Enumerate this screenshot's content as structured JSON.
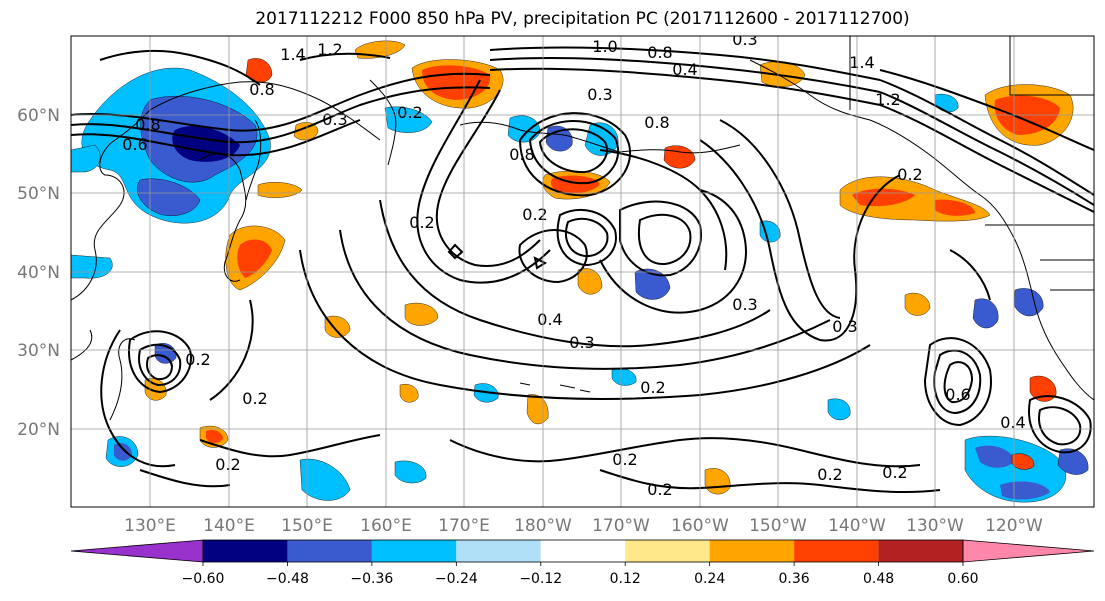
{
  "title": "2017112212 F000 850 hPa PV, precipitation PC (2017112600 - 2017112700)",
  "lat_labels": [
    "60°N",
    "50°N",
    "40°N",
    "30°N",
    "20°N"
  ],
  "lon_labels": [
    "130°E",
    "140°E",
    "150°E",
    "160°E",
    "170°E",
    "180°W",
    "170°W",
    "160°W",
    "150°W",
    "140°W",
    "130°W",
    "120°W"
  ],
  "colorbar": {
    "colors": [
      "#9932cc",
      "#000080",
      "#3a5bd0",
      "#00bfff",
      "#b0e0f8",
      "#ffffff",
      "#ffe88a",
      "#ffa500",
      "#ff4000",
      "#b22222",
      "#ff88aa"
    ],
    "tick_labels": [
      "−0.60",
      "−0.48",
      "−0.36",
      "−0.24",
      "−0.12",
      "0.12",
      "0.24",
      "0.36",
      "0.48",
      "0.60"
    ]
  },
  "contour_labels": [
    "1.0",
    "0.8",
    "0.4",
    "0.3",
    "1.4",
    "1.2",
    "1.4",
    "1.2",
    "0.8",
    "0.6",
    "0.8",
    "0.3",
    "0.3",
    "0.8",
    "0.2",
    "0.4",
    "0.3",
    "0.3",
    "0.3",
    "0.2",
    "0.2",
    "0.2",
    "0.2",
    "0.2",
    "0.2",
    "0.2",
    "0.2",
    "0.8",
    "0.4",
    "0.6",
    "0.2",
    "0.2",
    "0.2"
  ]
}
